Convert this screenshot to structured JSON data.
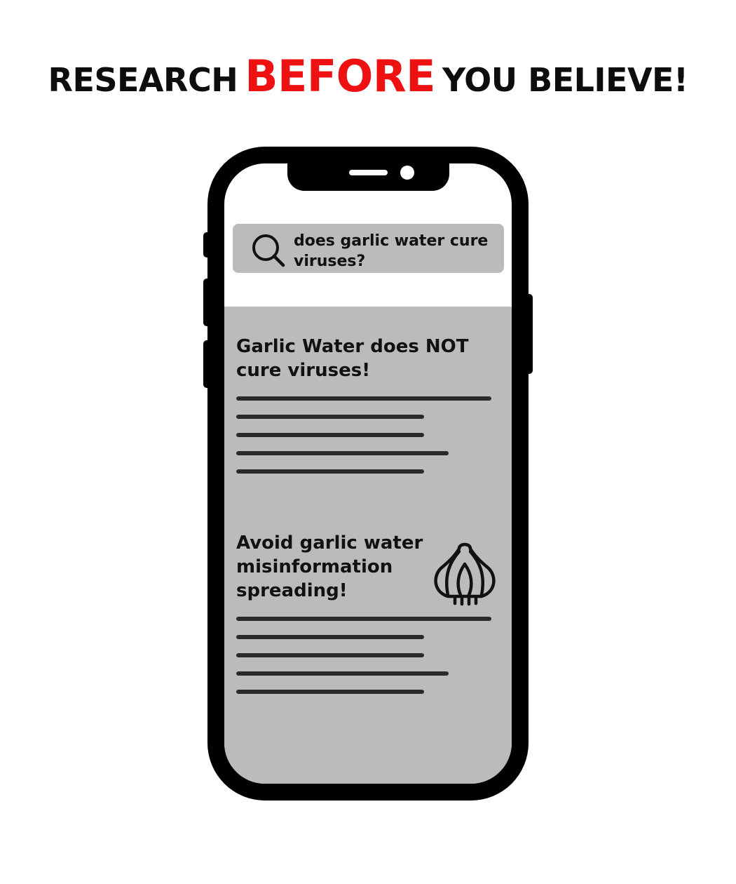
{
  "headline": {
    "before_text": "RESEARCH",
    "accent_text": "BEFORE",
    "after_text": "YOU BELIEVE!",
    "accent_color": "#ee1111"
  },
  "search": {
    "query": "does garlic water cure viruses?",
    "icon": "search-icon"
  },
  "results": [
    {
      "title": "Garlic Water does NOT cure viruses!"
    },
    {
      "title": "Avoid garlic water misinformation spreading!",
      "icon": "garlic-icon"
    }
  ],
  "colors": {
    "phone_frame": "#000000",
    "panel_gray": "#bbbbbb",
    "text_line": "#2a2a2a"
  }
}
